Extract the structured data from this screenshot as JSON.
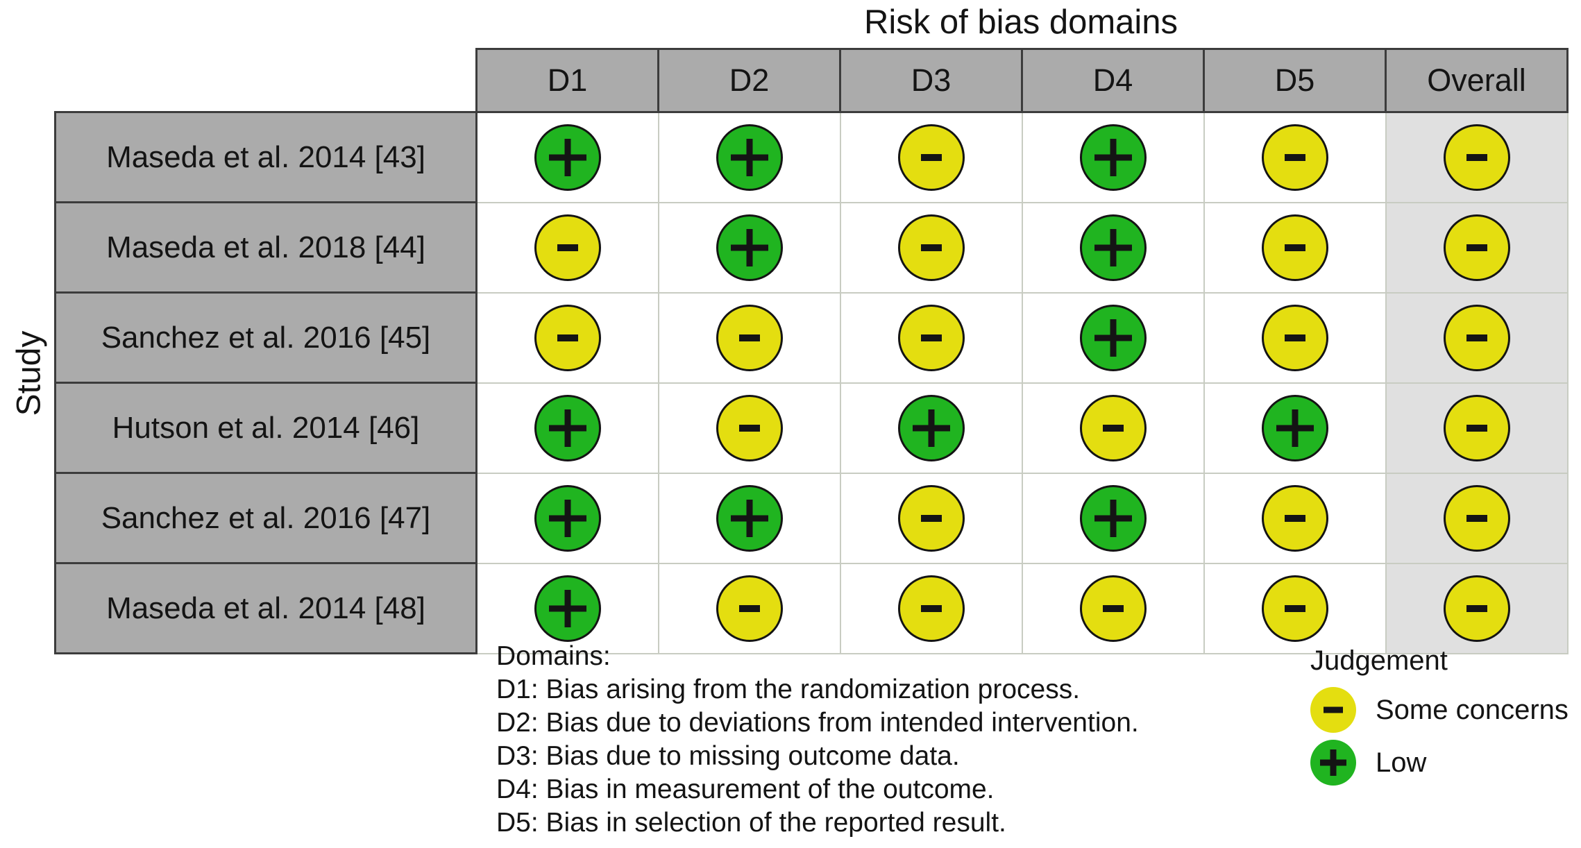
{
  "chart_data": {
    "type": "table",
    "title": "Risk of bias domains",
    "ylabel": "Study",
    "columns": [
      "D1",
      "D2",
      "D3",
      "D4",
      "D5",
      "Overall"
    ],
    "rows": [
      {
        "study": "Maseda et al. 2014 [43]",
        "values": [
          "Low",
          "Low",
          "Some concerns",
          "Low",
          "Some concerns",
          "Some concerns"
        ]
      },
      {
        "study": "Maseda et al. 2018 [44]",
        "values": [
          "Some concerns",
          "Low",
          "Some concerns",
          "Low",
          "Some concerns",
          "Some concerns"
        ]
      },
      {
        "study": "Sanchez et al. 2016 [45]",
        "values": [
          "Some concerns",
          "Some concerns",
          "Some concerns",
          "Low",
          "Some concerns",
          "Some concerns"
        ]
      },
      {
        "study": "Hutson et al. 2014 [46]",
        "values": [
          "Low",
          "Some concerns",
          "Low",
          "Some concerns",
          "Low",
          "Some concerns"
        ]
      },
      {
        "study": "Sanchez et al. 2016 [47]",
        "values": [
          "Low",
          "Low",
          "Some concerns",
          "Low",
          "Some concerns",
          "Some concerns"
        ]
      },
      {
        "study": "Maseda et al. 2014 [48]",
        "values": [
          "Low",
          "Some concerns",
          "Some concerns",
          "Some concerns",
          "Some concerns",
          "Some concerns"
        ]
      }
    ],
    "legend_position": "bottom-right",
    "grid": true
  },
  "judgement_styles": {
    "Low": {
      "symbol": "+",
      "color": "#20b420"
    },
    "Some concerns": {
      "symbol": "-",
      "color": "#e4de10"
    }
  },
  "legend": {
    "title": "Judgement",
    "items": [
      "Some concerns",
      "Low"
    ]
  },
  "footnote": {
    "heading": "Domains:",
    "lines": [
      "D1: Bias arising from the randomization process.",
      "D2: Bias due to deviations from intended intervention.",
      "D3: Bias due to missing outcome data.",
      "D4: Bias in measurement of the outcome.",
      "D5: Bias in selection of the reported result."
    ]
  },
  "colors": {
    "low": "#20b420",
    "some_concerns": "#e4de10",
    "header_bg": "#ababab",
    "overall_column_bg": "#e0e0e0"
  }
}
